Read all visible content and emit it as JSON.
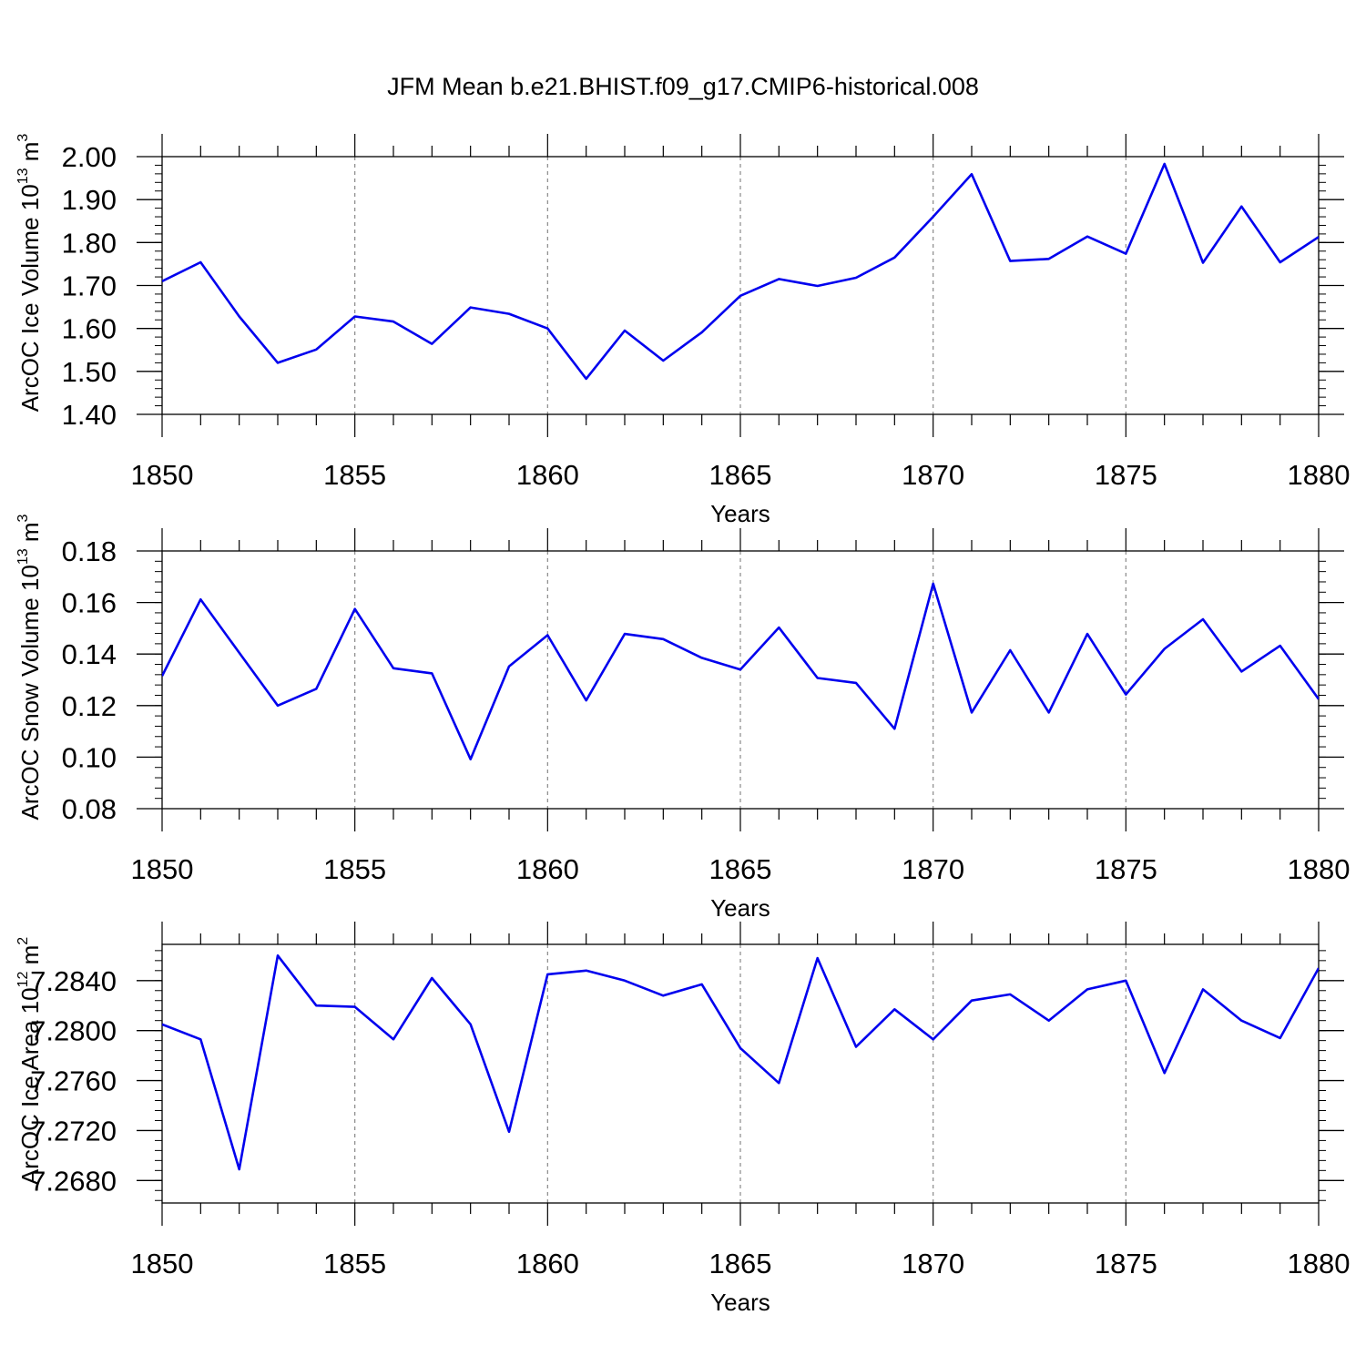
{
  "figure": {
    "title": "JFM Mean b.e21.BHIST.f09_g17.CMIP6-historical.008",
    "line_color": "#0000ee"
  },
  "chart_data": [
    {
      "type": "line",
      "name": "ice-volume",
      "ylabel": {
        "main": "ArcOC Ice Volume 10",
        "exp": "13",
        "unit": " m",
        "unit_exp": "3"
      },
      "xlabel": "Years",
      "xlim": [
        1850,
        1880
      ],
      "ylim": [
        1.4,
        2.0
      ],
      "xticks": [
        1850,
        1855,
        1860,
        1865,
        1870,
        1875,
        1880
      ],
      "xtick_labels": [
        "1850",
        "1855",
        "1860",
        "1865",
        "1870",
        "1875",
        "1880"
      ],
      "yticks": [
        1.4,
        1.5,
        1.6,
        1.7,
        1.8,
        1.9,
        2.0
      ],
      "ytick_labels": [
        "1.40",
        "1.50",
        "1.60",
        "1.70",
        "1.80",
        "1.90",
        "2.00"
      ],
      "y_minor_step": 0.02,
      "x": [
        1850,
        1851,
        1852,
        1853,
        1854,
        1855,
        1856,
        1857,
        1858,
        1859,
        1860,
        1861,
        1862,
        1863,
        1864,
        1865,
        1866,
        1867,
        1868,
        1869,
        1870,
        1871,
        1872,
        1873,
        1874,
        1875,
        1876,
        1877,
        1878,
        1879,
        1880
      ],
      "values": [
        1.71,
        1.754,
        1.628,
        1.52,
        1.551,
        1.628,
        1.616,
        1.564,
        1.649,
        1.634,
        1.6,
        1.483,
        1.595,
        1.525,
        1.591,
        1.676,
        1.715,
        1.699,
        1.718,
        1.765,
        1.86,
        1.959,
        1.757,
        1.762,
        1.814,
        1.774,
        1.983,
        1.753,
        1.884,
        1.754,
        1.813
      ]
    },
    {
      "type": "line",
      "name": "snow-volume",
      "ylabel": {
        "main": "ArcOC Snow Volume 10",
        "exp": "13",
        "unit": " m",
        "unit_exp": "3"
      },
      "xlabel": "Years",
      "xlim": [
        1850,
        1880
      ],
      "ylim": [
        0.08,
        0.18
      ],
      "xticks": [
        1850,
        1855,
        1860,
        1865,
        1870,
        1875,
        1880
      ],
      "xtick_labels": [
        "1850",
        "1855",
        "1860",
        "1865",
        "1870",
        "1875",
        "1880"
      ],
      "yticks": [
        0.08,
        0.1,
        0.12,
        0.14,
        0.16,
        0.18
      ],
      "ytick_labels": [
        "0.08",
        "0.10",
        "0.12",
        "0.14",
        "0.16",
        "0.18"
      ],
      "y_minor_step": 0.004,
      "x": [
        1850,
        1851,
        1852,
        1853,
        1854,
        1855,
        1856,
        1857,
        1858,
        1859,
        1860,
        1861,
        1862,
        1863,
        1864,
        1865,
        1866,
        1867,
        1868,
        1869,
        1870,
        1871,
        1872,
        1873,
        1874,
        1875,
        1876,
        1877,
        1878,
        1879,
        1880
      ],
      "values": [
        0.1315,
        0.1612,
        0.1405,
        0.12,
        0.1265,
        0.1575,
        0.1345,
        0.1325,
        0.0992,
        0.1352,
        0.1473,
        0.122,
        0.1478,
        0.1458,
        0.1385,
        0.134,
        0.1503,
        0.1307,
        0.1288,
        0.111,
        0.1673,
        0.1173,
        0.1415,
        0.1173,
        0.1478,
        0.1243,
        0.142,
        0.1535,
        0.1332,
        0.1432,
        0.1225
      ]
    },
    {
      "type": "line",
      "name": "ice-area",
      "ylabel": {
        "main": "ArcOC Ice Area 10",
        "exp": "12",
        "unit": " m",
        "unit_exp": "2"
      },
      "xlabel": "Years",
      "xlim": [
        1850,
        1880
      ],
      "ylim": [
        7.2662,
        7.2869
      ],
      "xticks": [
        1850,
        1855,
        1860,
        1865,
        1870,
        1875,
        1880
      ],
      "xtick_labels": [
        "1850",
        "1855",
        "1860",
        "1865",
        "1870",
        "1875",
        "1880"
      ],
      "yticks": [
        7.268,
        7.272,
        7.276,
        7.28,
        7.284
      ],
      "ytick_labels": [
        "7.2680",
        "7.2720",
        "7.2760",
        "7.2800",
        "7.2840"
      ],
      "y_minor_step": 0.0008,
      "x": [
        1850,
        1851,
        1852,
        1853,
        1854,
        1855,
        1856,
        1857,
        1858,
        1859,
        1860,
        1861,
        1862,
        1863,
        1864,
        1865,
        1866,
        1867,
        1868,
        1869,
        1870,
        1871,
        1872,
        1873,
        1874,
        1875,
        1876,
        1877,
        1878,
        1879,
        1880
      ],
      "values": [
        7.2805,
        7.2793,
        7.2689,
        7.286,
        7.282,
        7.2819,
        7.2793,
        7.2842,
        7.2805,
        7.2719,
        7.2845,
        7.2848,
        7.284,
        7.2828,
        7.2837,
        7.2786,
        7.2758,
        7.2858,
        7.2787,
        7.2817,
        7.2793,
        7.2824,
        7.2829,
        7.2808,
        7.2833,
        7.284,
        7.2766,
        7.2833,
        7.2808,
        7.2794,
        7.285
      ]
    }
  ]
}
